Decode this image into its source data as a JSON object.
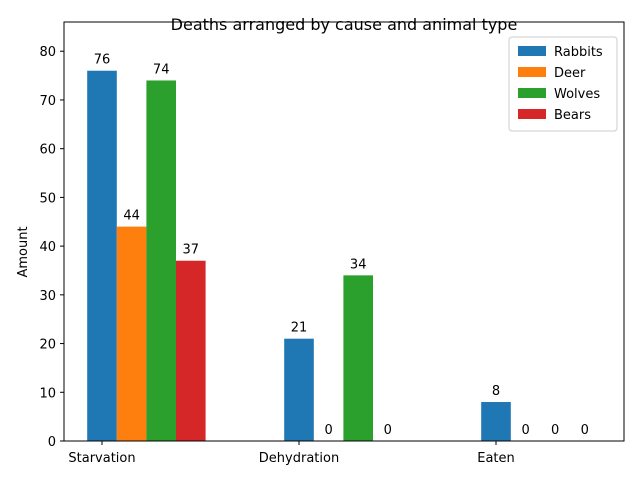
{
  "chart_data": {
    "type": "bar",
    "title": "Deaths arranged by cause and animal type",
    "xlabel": "",
    "ylabel": "Amount",
    "categories": [
      "Starvation",
      "Dehydration",
      "Eaten"
    ],
    "series": [
      {
        "name": "Rabbits",
        "values": [
          76,
          21,
          8
        ],
        "color": "#1f77b4"
      },
      {
        "name": "Deer",
        "values": [
          44,
          0,
          0
        ],
        "color": "#ff7f0e"
      },
      {
        "name": "Wolves",
        "values": [
          74,
          34,
          0
        ],
        "color": "#2ca02c"
      },
      {
        "name": "Bears",
        "values": [
          37,
          0,
          0
        ],
        "color": "#d62728"
      }
    ],
    "ylim": [
      0,
      86
    ],
    "yticks": [
      0,
      10,
      20,
      30,
      40,
      50,
      60,
      70,
      80
    ],
    "grid": false,
    "legend": "top-right",
    "data_labels": true
  }
}
